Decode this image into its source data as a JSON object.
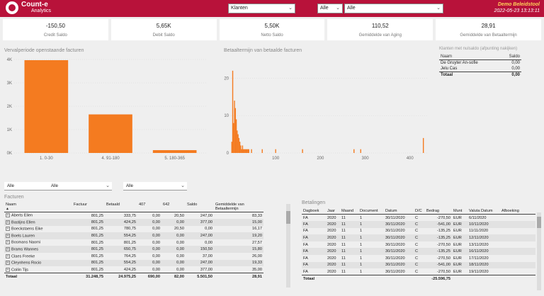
{
  "header": {
    "logo_line1": "Count-e",
    "logo_line2": "Analytics",
    "klanten_select": "Klanten",
    "filter1": "Alle",
    "filter2": "Alle",
    "demo_title": "Demo Beleidstool",
    "timestamp": "2022-05-23 13:13:11"
  },
  "kpis": [
    {
      "value": "-150,50",
      "label": "Credit Saldo"
    },
    {
      "value": "5,65K",
      "label": "Debit Saldo"
    },
    {
      "value": "5,50K",
      "label": "Netto Saldo"
    },
    {
      "value": "110,52",
      "label": "Gemiddelde van Aging"
    },
    {
      "value": "28,91",
      "label": "Gemiddelde van Betaaltermijn"
    }
  ],
  "chart_data": [
    {
      "type": "bar",
      "title": "Vervalperiode openstaande facturen",
      "categories": [
        "1. 0-30",
        "4. 91-180",
        "5. 180-365"
      ],
      "values": [
        3970,
        1650,
        120
      ],
      "ylim": [
        0,
        4000
      ],
      "yticks": [
        "0K",
        "1K",
        "2K",
        "3K",
        "4K"
      ],
      "color": "#f47b20"
    },
    {
      "type": "bar",
      "title": "Betaaltermijn van betaalde facturen",
      "x": [
        2,
        4,
        6,
        8,
        10,
        12,
        14,
        16,
        18,
        20,
        22,
        24,
        26,
        28,
        30,
        32,
        34,
        36,
        38,
        40,
        46,
        70,
        100,
        160,
        275,
        290,
        430
      ],
      "values": [
        3,
        22,
        8,
        14,
        12,
        9,
        6,
        5,
        4,
        3,
        2,
        1,
        2,
        1,
        1,
        1,
        1,
        1,
        1,
        1,
        1,
        1,
        1,
        1,
        1,
        1,
        4
      ],
      "xlim": [
        0,
        440
      ],
      "xticks": [
        "100",
        "200",
        "300",
        "400"
      ],
      "ylim": [
        0,
        25
      ],
      "yticks": [
        "0",
        "10",
        "20"
      ],
      "color": "#f47b20"
    }
  ],
  "klanten_zonder_saldo": {
    "title": "Klanten met nulsaldo (afpunting nakijken)",
    "col_name": "Naam",
    "col_saldo": "Saldo",
    "rows": [
      {
        "naam": "De Gruyter An-sofie",
        "saldo": "0,00"
      },
      {
        "naam": "Jelu Cas",
        "saldo": "0,00"
      }
    ],
    "total_label": "Totaal",
    "total_value": "0,00"
  },
  "slicers": [
    "Alle",
    "Alle",
    "Alle"
  ],
  "facturen": {
    "title": "Facturen",
    "columns": [
      "Naam",
      "Factuur",
      "Betaald",
      "407",
      "642",
      "Saldo",
      "Gemiddelde van Betaaltermijn"
    ],
    "rows": [
      [
        "Aberts Elien",
        "801,25",
        "333,75",
        "0,00",
        "20,50",
        "247,00",
        "83,33"
      ],
      [
        "Bastijns Ellen",
        "801,25",
        "424,25",
        "0,00",
        "0,00",
        "377,00",
        "15,00"
      ],
      [
        "Boeckstaens Eike",
        "801,25",
        "780,75",
        "0,00",
        "20,50",
        "0,00",
        "16,17"
      ],
      [
        "Boels Lauren",
        "801,25",
        "554,25",
        "0,00",
        "0,00",
        "247,00",
        "19,20"
      ],
      [
        "Bosmans Naomi",
        "801,25",
        "801,25",
        "0,00",
        "0,00",
        "0,00",
        "27,57"
      ],
      [
        "Brams Wannes",
        "801,25",
        "650,75",
        "0,00",
        "0,00",
        "150,50",
        "15,80"
      ],
      [
        "Claes Freeke",
        "801,25",
        "764,25",
        "0,00",
        "0,00",
        "37,00",
        "26,00"
      ],
      [
        "Cleynhens Rocio",
        "801,25",
        "554,25",
        "0,00",
        "0,00",
        "247,00",
        "19,33"
      ],
      [
        "Coilin Tijs",
        "801,25",
        "424,25",
        "0,00",
        "0,00",
        "377,00",
        "35,00"
      ]
    ],
    "total": [
      "Totaal",
      "31.248,75",
      "24.975,25",
      "690,00",
      "82,00",
      "5.501,50",
      "28,91"
    ]
  },
  "betalingen": {
    "title": "Betalingen",
    "columns": [
      "Dagboek",
      "Jaar",
      "Maand",
      "Document",
      "Datum",
      "D/C",
      "Bedrag",
      "Munt",
      "Valuta Datum",
      "Afboeking"
    ],
    "rows": [
      [
        "FA",
        "2020",
        "11",
        "1",
        "30/11/2020",
        "C",
        "-270,50",
        "EUR",
        "6/11/2020",
        ""
      ],
      [
        "FA",
        "2020",
        "11",
        "1",
        "30/11/2020",
        "C",
        "-541,00",
        "EUR",
        "10/11/2020",
        ""
      ],
      [
        "FA",
        "2020",
        "11",
        "1",
        "30/11/2020",
        "C",
        "-135,25",
        "EUR",
        "11/11/2020",
        ""
      ],
      [
        "FA",
        "2020",
        "11",
        "1",
        "30/11/2020",
        "C",
        "-135,25",
        "EUR",
        "12/11/2020",
        ""
      ],
      [
        "FA",
        "2020",
        "11",
        "1",
        "30/11/2020",
        "C",
        "-270,50",
        "EUR",
        "13/11/2020",
        ""
      ],
      [
        "FA",
        "2020",
        "11",
        "1",
        "30/11/2020",
        "C",
        "-135,25",
        "EUR",
        "16/11/2020",
        ""
      ],
      [
        "FA",
        "2020",
        "11",
        "1",
        "30/11/2020",
        "C",
        "-270,50",
        "EUR",
        "17/11/2020",
        ""
      ],
      [
        "FA",
        "2020",
        "11",
        "1",
        "30/11/2020",
        "C",
        "-541,00",
        "EUR",
        "18/11/2020",
        ""
      ],
      [
        "FA",
        "2020",
        "11",
        "1",
        "30/11/2020",
        "C",
        "-270,50",
        "EUR",
        "19/11/2020",
        ""
      ]
    ],
    "total": [
      "Totaal",
      "",
      "",
      "",
      "",
      "",
      "-25.596,75",
      "",
      "",
      ""
    ]
  }
}
